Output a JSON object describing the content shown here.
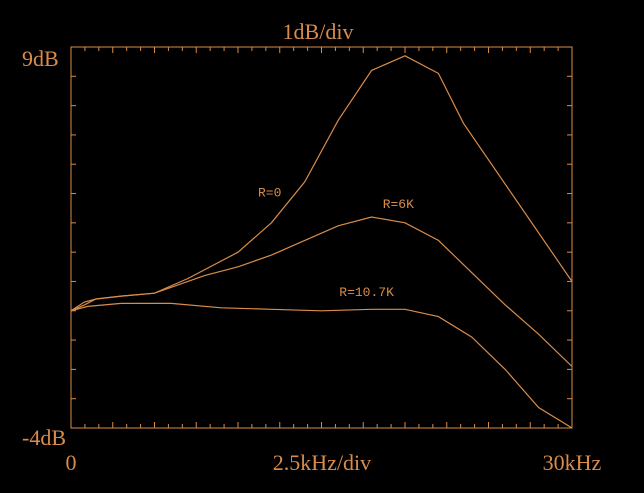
{
  "colors": {
    "background": "#000000",
    "trace": "#d98c4a"
  },
  "chart_data": {
    "type": "line",
    "title": "1dB/div",
    "xlabel": "2.5kHz/div",
    "x_start_label": "0",
    "x_end_label": "30kHz",
    "y_top_label": "9dB",
    "y_bottom_label": "-4dB",
    "xlim": [
      0,
      30
    ],
    "ylim": [
      -4,
      9
    ],
    "x_unit": "kHz",
    "y_unit": "dB",
    "grid": false,
    "series": [
      {
        "name": "R=0",
        "x": [
          0,
          0.8,
          1.5,
          3,
          5,
          7,
          10,
          12,
          14,
          16,
          18,
          20,
          22,
          23.5,
          30
        ],
        "y": [
          0,
          0.3,
          0.4,
          0.5,
          0.6,
          1.1,
          2.0,
          3.0,
          4.4,
          6.5,
          8.2,
          8.7,
          8.1,
          6.4,
          1.0
        ]
      },
      {
        "name": "R=6K",
        "x": [
          0,
          0.8,
          1.5,
          3,
          5,
          8,
          10,
          12,
          14,
          16,
          18,
          20,
          22,
          24,
          26,
          28,
          30
        ],
        "y": [
          0,
          0.2,
          0.4,
          0.5,
          0.6,
          1.2,
          1.5,
          1.9,
          2.4,
          2.9,
          3.2,
          3.0,
          2.4,
          1.3,
          0.2,
          -0.8,
          -1.9
        ]
      },
      {
        "name": "R=10.7K",
        "x": [
          0,
          1,
          3,
          6,
          9,
          12,
          15,
          18,
          20,
          22,
          24,
          26,
          28,
          30
        ],
        "y": [
          0,
          0.15,
          0.25,
          0.25,
          0.1,
          0.05,
          0.0,
          0.05,
          0.05,
          -0.2,
          -0.9,
          -2.0,
          -3.3,
          -4.0
        ]
      }
    ],
    "annotations": [
      {
        "text": "R=0",
        "x": 11.9,
        "y": 3.9
      },
      {
        "text": "R=6K",
        "x": 19.6,
        "y": 3.5
      },
      {
        "text": "R=10.7K",
        "x": 17.7,
        "y": 0.5
      }
    ],
    "x_minor_ticks": 36,
    "y_minor_ticks": 13
  }
}
